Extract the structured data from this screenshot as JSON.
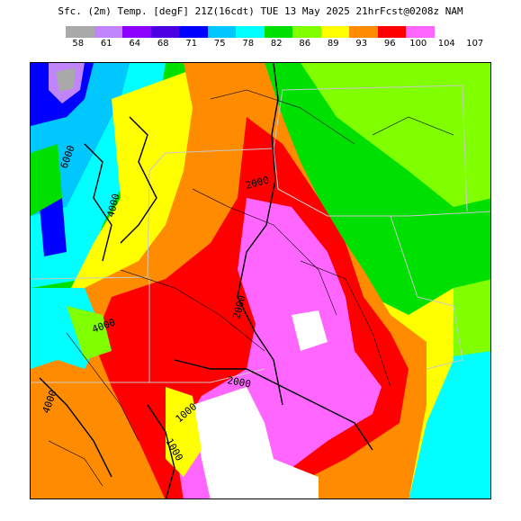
{
  "title": "Sfc. (2m) Temp. [degF] 21Z(16cdt) TUE 13 May 2025 21hrFcst@0208z NAM",
  "colorbar": {
    "colors": [
      "#a9a9a9",
      "#c084fc",
      "#8b00ff",
      "#4a00e0",
      "#0000ff",
      "#00c8ff",
      "#00ffff",
      "#00e000",
      "#80ff00",
      "#ffff00",
      "#ff8c00",
      "#ff0000",
      "#ff66ff",
      "#ffffff"
    ],
    "labels": [
      "58",
      "61",
      "64",
      "68",
      "71",
      "75",
      "78",
      "82",
      "86",
      "89",
      "93",
      "96",
      "100",
      "104",
      "107"
    ]
  },
  "map": {
    "contour_labels": [
      "6000",
      "4000",
      "2000",
      "2000",
      "4000",
      "2000",
      "4000",
      "1000",
      "1000"
    ]
  }
}
